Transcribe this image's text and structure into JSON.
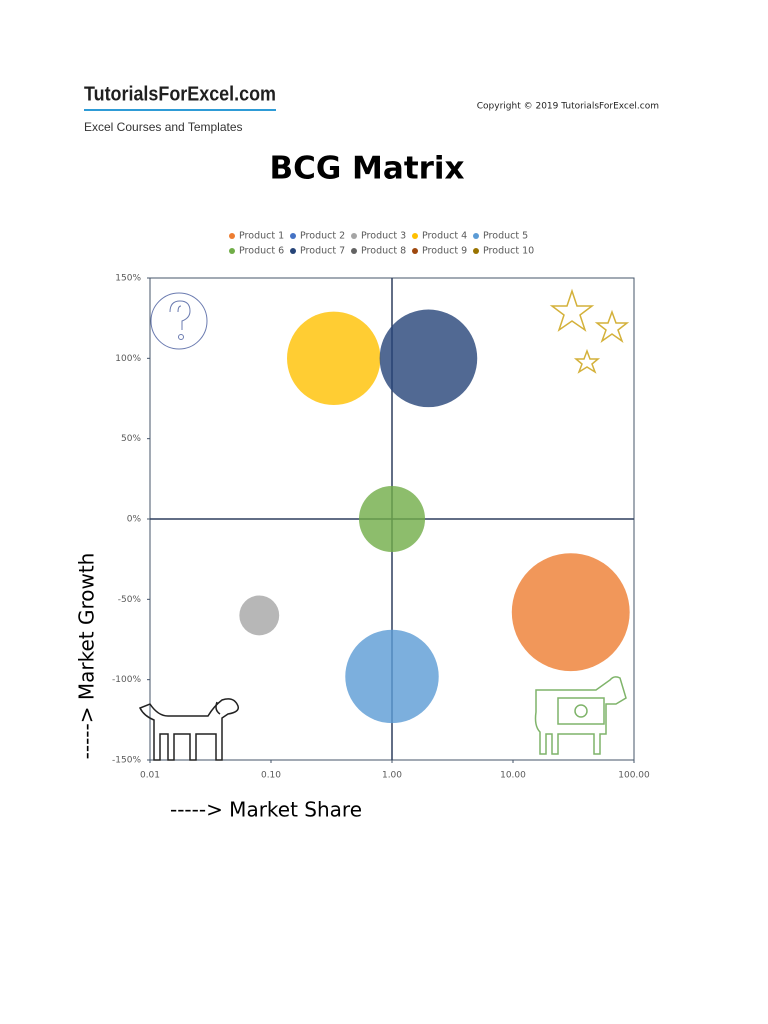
{
  "header": {
    "logo": "TutorialsForExcel.com",
    "tagline": "Excel Courses and Templates",
    "copyright": "Copyright © 2019 TutorialsForExcel.com"
  },
  "chart_data": {
    "type": "bubble",
    "title": "BCG Matrix",
    "x_label": "-----> Market Share",
    "y_label": "-----> Market Growth",
    "xscale": "log",
    "xlim": [
      0.01,
      100
    ],
    "ylim": [
      -150,
      150
    ],
    "xticks": [
      0.01,
      {
        "value": 0.1,
        "label": "0.10"
      },
      {
        "value": 1,
        "label": "1.00"
      },
      {
        "value": 10,
        "label": "10.00"
      },
      {
        "value": 100,
        "label": "100.00"
      }
    ],
    "yticks": [
      {
        "value": 150,
        "label": "150%"
      },
      {
        "value": 100,
        "label": "100%"
      },
      {
        "value": 50,
        "label": "50%"
      },
      {
        "value": 0,
        "label": "0%"
      },
      {
        "value": -50,
        "label": "-50%"
      },
      {
        "value": -100,
        "label": "-100%"
      },
      {
        "value": -150,
        "label": "-150%"
      }
    ],
    "x_cross": 1,
    "y_cross": 0,
    "legend": "top",
    "series": [
      {
        "name": "Product 1",
        "color": "#ed7d31",
        "x": 30,
        "y": -58,
        "size": 3.5
      },
      {
        "name": "Product 2",
        "color": "#4472c4",
        "x": null,
        "y": null,
        "size": null
      },
      {
        "name": "Product 3",
        "color": "#a5a5a5",
        "x": 0.08,
        "y": -60,
        "size": 0.4
      },
      {
        "name": "Product 4",
        "color": "#ffc000",
        "x": 0.33,
        "y": 100,
        "size": 2.2
      },
      {
        "name": "Product 5",
        "color": "#5b9bd5",
        "x": 1,
        "y": -98,
        "size": 2.2
      },
      {
        "name": "Product 6",
        "color": "#70ad47",
        "x": 1,
        "y": 0,
        "size": 1.1
      },
      {
        "name": "Product 7",
        "color": "#264478",
        "x": 2,
        "y": 100,
        "size": 2.4
      },
      {
        "name": "Product 8",
        "color": "#636363",
        "x": null,
        "y": null,
        "size": null
      },
      {
        "name": "Product 9",
        "color": "#9e480e",
        "x": null,
        "y": null,
        "size": null
      },
      {
        "name": "Product 10",
        "color": "#997300",
        "x": null,
        "y": null,
        "size": null
      }
    ]
  }
}
